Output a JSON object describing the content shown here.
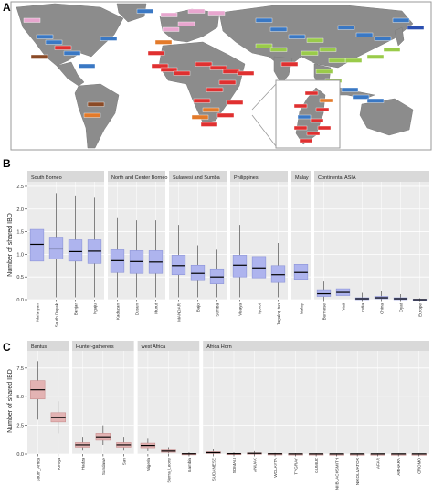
{
  "panels": {
    "a": {
      "letter": "A"
    },
    "b": {
      "letter": "B",
      "ylabel": "Number of shared IBD"
    },
    "c": {
      "letter": "C",
      "ylabel": "Number of shared IBD"
    }
  },
  "colors": {
    "map_land": "#8c8c8c",
    "map_sea": "#ffffff",
    "panel_bg": "#ebebeb",
    "strip_bg": "#d9d9d9",
    "box_b": "#aeb4ee",
    "box_b_border": "#8b93d8",
    "box_c": "#e3b3b3",
    "box_c_border": "#c98f8f",
    "median": "#000000",
    "label_colors": [
      "#e03030",
      "#3a78c4",
      "#9acb4a",
      "#e37a2a",
      "#e8a6cf",
      "#8a4a26",
      "#2b4fb0"
    ]
  },
  "chart_data": [
    {
      "type": "box",
      "panel": "B",
      "ylabel": "Number of shared IBD",
      "ylim": [
        0,
        2.6
      ],
      "yticks": [
        0.0,
        0.5,
        1.0,
        1.5,
        2.0,
        2.5
      ],
      "ytick_labels": [
        "0.0",
        "0.5",
        "1.0",
        "1.5",
        "2.0",
        "2.5"
      ],
      "grid": true,
      "facets": [
        {
          "name": "South Borneo",
          "categories": [
            {
              "label": "Ma'anyan",
              "q1": 0.85,
              "median": 1.22,
              "q3": 1.55,
              "lo": 0.05,
              "hi": 2.5
            },
            {
              "label": "South Dayak",
              "q1": 0.9,
              "median": 1.12,
              "q3": 1.38,
              "lo": 0.05,
              "hi": 2.35
            },
            {
              "label": "Banjar",
              "q1": 0.85,
              "median": 1.06,
              "q3": 1.32,
              "lo": 0.05,
              "hi": 2.3
            },
            {
              "label": "Ngaju",
              "q1": 0.8,
              "median": 1.07,
              "q3": 1.32,
              "lo": 0.05,
              "hi": 2.25
            }
          ]
        },
        {
          "name": "North and Center Borneo",
          "categories": [
            {
              "label": "Kadazan",
              "q1": 0.6,
              "median": 0.86,
              "q3": 1.1,
              "lo": 0.05,
              "hi": 1.8
            },
            {
              "label": "Dusun",
              "q1": 0.58,
              "median": 0.84,
              "q3": 1.08,
              "lo": 0.05,
              "hi": 1.75
            },
            {
              "label": "Murut",
              "q1": 0.58,
              "median": 0.83,
              "q3": 1.08,
              "lo": 0.05,
              "hi": 1.75
            }
          ]
        },
        {
          "name": "Sulawesi and Sumba",
          "categories": [
            {
              "label": "MANDAR",
              "q1": 0.55,
              "median": 0.75,
              "q3": 0.98,
              "lo": 0.05,
              "hi": 1.65
            },
            {
              "label": "Bajo",
              "q1": 0.42,
              "median": 0.58,
              "q3": 0.76,
              "lo": 0.05,
              "hi": 1.2
            },
            {
              "label": "Sumba",
              "q1": 0.35,
              "median": 0.5,
              "q3": 0.68,
              "lo": 0.05,
              "hi": 1.1
            }
          ]
        },
        {
          "name": "Philippines",
          "categories": [
            {
              "label": "Visaya",
              "q1": 0.5,
              "median": 0.76,
              "q3": 0.98,
              "lo": 0.05,
              "hi": 1.65
            },
            {
              "label": "Igorot",
              "q1": 0.48,
              "median": 0.7,
              "q3": 0.95,
              "lo": 0.05,
              "hi": 1.6
            },
            {
              "label": "Tagalog tuo",
              "q1": 0.38,
              "median": 0.55,
              "q3": 0.75,
              "lo": 0.05,
              "hi": 1.25
            }
          ]
        },
        {
          "name": "Malay",
          "categories": [
            {
              "label": "Malay",
              "q1": 0.45,
              "median": 0.6,
              "q3": 0.78,
              "lo": 0.05,
              "hi": 1.3
            }
          ]
        },
        {
          "name": "Continental ASIA",
          "categories": [
            {
              "label": "Burmese",
              "q1": 0.07,
              "median": 0.13,
              "q3": 0.22,
              "lo": 0.0,
              "hi": 0.4
            },
            {
              "label": "Vati",
              "q1": 0.09,
              "median": 0.16,
              "q3": 0.24,
              "lo": 0.0,
              "hi": 0.45
            },
            {
              "label": "India",
              "q1": 0.0,
              "median": 0.02,
              "q3": 0.04,
              "lo": 0.0,
              "hi": 0.15
            },
            {
              "label": "China",
              "q1": 0.02,
              "median": 0.04,
              "q3": 0.07,
              "lo": 0.0,
              "hi": 0.2
            },
            {
              "label": "Oyat",
              "q1": 0.0,
              "median": 0.02,
              "q3": 0.04,
              "lo": 0.0,
              "hi": 0.12
            },
            {
              "label": "Europe",
              "q1": 0.0,
              "median": 0.0,
              "q3": 0.01,
              "lo": 0.0,
              "hi": 0.03
            }
          ]
        }
      ]
    },
    {
      "type": "box",
      "panel": "C",
      "ylabel": "Number of shared IBD",
      "ylim": [
        0,
        9
      ],
      "yticks": [
        0.0,
        2.5,
        5.0,
        7.5
      ],
      "ytick_labels": [
        "0.0",
        "2.5",
        "5.0",
        "7.5"
      ],
      "grid": true,
      "facets": [
        {
          "name": "Bantus",
          "categories": [
            {
              "label": "South_Africa",
              "q1": 4.8,
              "median": 5.6,
              "q3": 6.4,
              "lo": 3.0,
              "hi": 8.1
            },
            {
              "label": "Kenya",
              "q1": 2.8,
              "median": 3.2,
              "q3": 3.6,
              "lo": 1.8,
              "hi": 4.6
            }
          ]
        },
        {
          "name": "Hunter-gatherers",
          "categories": [
            {
              "label": "Hadza",
              "q1": 0.6,
              "median": 0.8,
              "q3": 1.0,
              "lo": 0.3,
              "hi": 1.5
            },
            {
              "label": "Sandawe",
              "q1": 1.2,
              "median": 1.5,
              "q3": 1.8,
              "lo": 0.8,
              "hi": 2.5
            },
            {
              "label": "San",
              "q1": 0.6,
              "median": 0.8,
              "q3": 1.0,
              "lo": 0.3,
              "hi": 1.5
            }
          ]
        },
        {
          "name": "west Africa",
          "categories": [
            {
              "label": "Nigeria",
              "q1": 0.55,
              "median": 0.75,
              "q3": 0.95,
              "lo": 0.25,
              "hi": 1.4
            },
            {
              "label": "Sierra_Leone",
              "q1": 0.15,
              "median": 0.25,
              "q3": 0.35,
              "lo": 0.05,
              "hi": 0.6
            },
            {
              "label": "Gambia",
              "q1": 0.0,
              "median": 0.02,
              "q3": 0.05,
              "lo": 0.0,
              "hi": 0.15
            }
          ]
        },
        {
          "name": "Africa Horn",
          "categories": [
            {
              "label": "SUDANESE",
              "q1": 0.05,
              "median": 0.12,
              "q3": 0.2,
              "lo": 0.0,
              "hi": 0.4
            },
            {
              "label": "SOMALI",
              "q1": 0.0,
              "median": 0.03,
              "q3": 0.06,
              "lo": 0.0,
              "hi": 0.15
            },
            {
              "label": "ANUAK",
              "q1": 0.02,
              "median": 0.06,
              "q3": 0.1,
              "lo": 0.0,
              "hi": 0.25
            },
            {
              "label": "WOLAYTA",
              "q1": 0.0,
              "median": 0.02,
              "q3": 0.04,
              "lo": 0.0,
              "hi": 0.1
            },
            {
              "label": "TYGRAY",
              "q1": 0.0,
              "median": 0.01,
              "q3": 0.03,
              "lo": 0.0,
              "hi": 0.08
            },
            {
              "label": "GUMUZ",
              "q1": 0.0,
              "median": 0.01,
              "q3": 0.03,
              "lo": 0.0,
              "hi": 0.08
            },
            {
              "label": "NIIBLACKSMITH",
              "q1": 0.0,
              "median": 0.01,
              "q3": 0.02,
              "lo": 0.0,
              "hi": 0.06
            },
            {
              "label": "NIKOLIVATOR",
              "q1": 0.0,
              "median": 0.01,
              "q3": 0.02,
              "lo": 0.0,
              "hi": 0.06
            },
            {
              "label": "AFAR",
              "q1": 0.0,
              "median": 0.01,
              "q3": 0.02,
              "lo": 0.0,
              "hi": 0.06
            },
            {
              "label": "AMHARA",
              "q1": 0.0,
              "median": 0.01,
              "q3": 0.02,
              "lo": 0.0,
              "hi": 0.06
            },
            {
              "label": "OROMO",
              "q1": 0.0,
              "median": 0.01,
              "q3": 0.02,
              "lo": 0.0,
              "hi": 0.06
            }
          ]
        }
      ]
    }
  ]
}
